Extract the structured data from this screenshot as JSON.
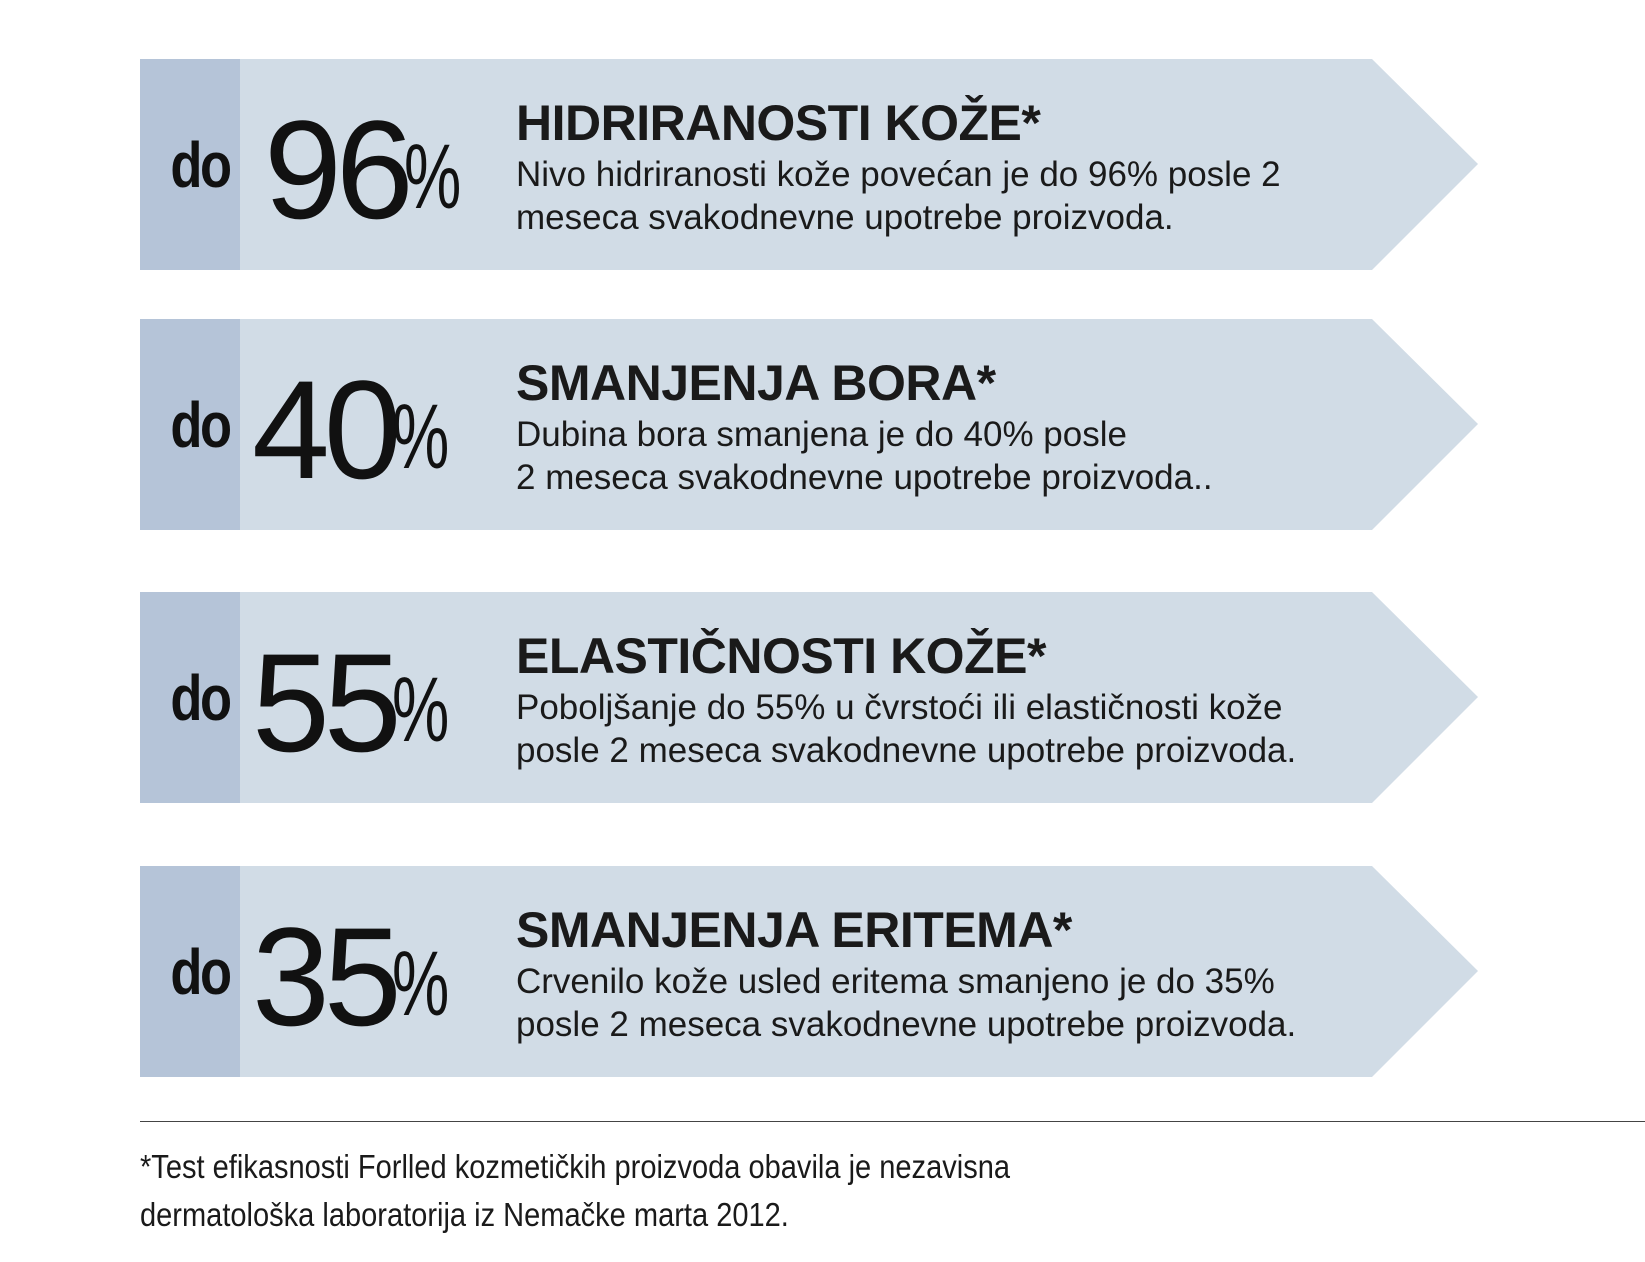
{
  "stats": [
    {
      "prefix": "do",
      "number": "96",
      "percent": "%",
      "title": "HIDRIRANOSTI KOŽE*",
      "description": "Nivo hidriranosti kože povećan je do 96% posle 2\nmeseca svakodnevne upotrebe proizvoda."
    },
    {
      "prefix": "do",
      "number": "40",
      "percent": "%",
      "title": "SMANJENJA BORA*",
      "description": "Dubina bora smanjena je do 40% posle\n2 meseca svakodnevne upotrebe proizvoda.."
    },
    {
      "prefix": "do",
      "number": "55",
      "percent": "%",
      "title": "ELASTIČNOSTI KOŽE*",
      "description": "Poboljšanje do 55% u čvrstoći ili elastičnosti kože\nposle 2 meseca svakodnevne upotrebe proizvoda."
    },
    {
      "prefix": "do",
      "number": "35",
      "percent": "%",
      "title": "SMANJENJA ERITEMA*",
      "description": "Crvenilo kože usled eritema smanjeno je do 35%\nposle 2 meseca svakodnevne upotrebe proizvoda."
    }
  ],
  "footnote": "*Test efikasnosti Forlled kozmetičkih proizvoda obavila je nezavisna\ndermatološka  laboratorija iz Nemačke marta 2012.",
  "colors": {
    "arrow_fill": "#d1dce6",
    "prefix_band": "#b5c4d8",
    "text": "#1a1a1a"
  }
}
